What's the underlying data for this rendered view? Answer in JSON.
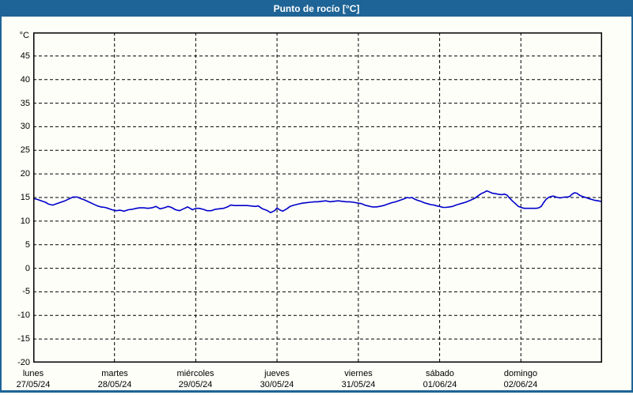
{
  "window": {
    "title": "Punto de rocío [°C]"
  },
  "colors": {
    "accent_blue": "#1e6496",
    "title_text": "#ffffff",
    "series_line": "#0000cc",
    "grid_line": "#000000",
    "content_background": "#fdfef8"
  },
  "chart_data": {
    "type": "line",
    "title": "Punto de rocío [°C]",
    "y_unit_label": "°C",
    "ylim": [
      -20,
      50
    ],
    "grid": "dashed",
    "legend": "none",
    "ygrid_values": [
      45,
      40,
      35,
      30,
      25,
      20,
      15,
      10,
      5,
      0,
      -5,
      -10,
      -15
    ],
    "ytick_labels": [
      "45",
      "40",
      "35",
      "30",
      "25",
      "20",
      "15",
      "10",
      "5",
      "0",
      "-5",
      "-10",
      "-15",
      "-20"
    ],
    "xtick_days": [
      "lunes",
      "martes",
      "miércoles",
      "jueves",
      "viernes",
      "sábado",
      "domingo"
    ],
    "xtick_dates": [
      "27/05/24",
      "28/05/24",
      "29/05/24",
      "30/05/24",
      "31/05/24",
      "01/06/24",
      "02/06/24"
    ],
    "x_days_shown": 7,
    "series": [
      {
        "name": "Punto de rocío",
        "color": "#0000cc",
        "x_unit": "days_since_2024-05-27_00:00",
        "y_unit": "°C",
        "points": [
          [
            0.0,
            14.8
          ],
          [
            0.05,
            14.6
          ],
          [
            0.1,
            14.3
          ],
          [
            0.15,
            14.0
          ],
          [
            0.19,
            13.6
          ],
          [
            0.24,
            13.4
          ],
          [
            0.29,
            13.7
          ],
          [
            0.34,
            14.0
          ],
          [
            0.39,
            14.3
          ],
          [
            0.44,
            14.7
          ],
          [
            0.49,
            15.1
          ],
          [
            0.54,
            15.1
          ],
          [
            0.58,
            14.8
          ],
          [
            0.63,
            14.5
          ],
          [
            0.68,
            14.1
          ],
          [
            0.73,
            13.7
          ],
          [
            0.78,
            13.3
          ],
          [
            0.83,
            13.0
          ],
          [
            0.88,
            12.9
          ],
          [
            0.92,
            12.7
          ],
          [
            0.97,
            12.4
          ],
          [
            1.02,
            12.2
          ],
          [
            1.07,
            12.3
          ],
          [
            1.12,
            12.1
          ],
          [
            1.17,
            12.4
          ],
          [
            1.22,
            12.5
          ],
          [
            1.27,
            12.7
          ],
          [
            1.31,
            12.8
          ],
          [
            1.36,
            12.8
          ],
          [
            1.41,
            12.7
          ],
          [
            1.46,
            12.8
          ],
          [
            1.51,
            13.1
          ],
          [
            1.56,
            12.6
          ],
          [
            1.61,
            12.8
          ],
          [
            1.66,
            13.1
          ],
          [
            1.7,
            12.9
          ],
          [
            1.75,
            12.4
          ],
          [
            1.8,
            12.2
          ],
          [
            1.85,
            12.6
          ],
          [
            1.9,
            13.0
          ],
          [
            1.93,
            12.7
          ],
          [
            1.96,
            12.4
          ],
          [
            2.0,
            12.7
          ],
          [
            2.04,
            12.7
          ],
          [
            2.09,
            12.5
          ],
          [
            2.14,
            12.2
          ],
          [
            2.19,
            12.2
          ],
          [
            2.24,
            12.5
          ],
          [
            2.29,
            12.6
          ],
          [
            2.34,
            12.7
          ],
          [
            2.39,
            13.0
          ],
          [
            2.43,
            13.4
          ],
          [
            2.48,
            13.3
          ],
          [
            2.53,
            13.3
          ],
          [
            2.58,
            13.3
          ],
          [
            2.63,
            13.3
          ],
          [
            2.68,
            13.2
          ],
          [
            2.73,
            13.1
          ],
          [
            2.77,
            13.2
          ],
          [
            2.82,
            12.6
          ],
          [
            2.87,
            12.3
          ],
          [
            2.92,
            11.8
          ],
          [
            2.97,
            12.2
          ],
          [
            3.0,
            12.8
          ],
          [
            3.03,
            12.4
          ],
          [
            3.07,
            12.1
          ],
          [
            3.12,
            12.6
          ],
          [
            3.16,
            13.1
          ],
          [
            3.21,
            13.4
          ],
          [
            3.26,
            13.6
          ],
          [
            3.31,
            13.8
          ],
          [
            3.36,
            13.9
          ],
          [
            3.41,
            14.0
          ],
          [
            3.46,
            14.1
          ],
          [
            3.5,
            14.1
          ],
          [
            3.55,
            14.2
          ],
          [
            3.6,
            14.3
          ],
          [
            3.65,
            14.1
          ],
          [
            3.7,
            14.2
          ],
          [
            3.75,
            14.3
          ],
          [
            3.8,
            14.2
          ],
          [
            3.85,
            14.1
          ],
          [
            3.89,
            14.1
          ],
          [
            3.94,
            14.0
          ],
          [
            3.97,
            13.9
          ],
          [
            4.0,
            13.8
          ],
          [
            4.04,
            13.7
          ],
          [
            4.08,
            13.4
          ],
          [
            4.12,
            13.2
          ],
          [
            4.17,
            13.0
          ],
          [
            4.22,
            13.0
          ],
          [
            4.26,
            13.1
          ],
          [
            4.31,
            13.3
          ],
          [
            4.36,
            13.6
          ],
          [
            4.41,
            13.9
          ],
          [
            4.46,
            14.1
          ],
          [
            4.51,
            14.4
          ],
          [
            4.56,
            14.7
          ],
          [
            4.6,
            15.0
          ],
          [
            4.63,
            14.9
          ],
          [
            4.66,
            15.0
          ],
          [
            4.7,
            14.6
          ],
          [
            4.73,
            14.4
          ],
          [
            4.77,
            14.2
          ],
          [
            4.81,
            13.9
          ],
          [
            4.85,
            13.7
          ],
          [
            4.89,
            13.5
          ],
          [
            4.93,
            13.4
          ],
          [
            4.97,
            13.2
          ],
          [
            5.0,
            13.1
          ],
          [
            5.04,
            12.9
          ],
          [
            5.08,
            12.9
          ],
          [
            5.12,
            13.0
          ],
          [
            5.16,
            13.1
          ],
          [
            5.2,
            13.4
          ],
          [
            5.24,
            13.6
          ],
          [
            5.28,
            13.8
          ],
          [
            5.32,
            14.0
          ],
          [
            5.35,
            14.2
          ],
          [
            5.39,
            14.5
          ],
          [
            5.43,
            14.8
          ],
          [
            5.47,
            15.3
          ],
          [
            5.51,
            15.8
          ],
          [
            5.55,
            16.1
          ],
          [
            5.58,
            16.4
          ],
          [
            5.61,
            16.2
          ],
          [
            5.65,
            15.9
          ],
          [
            5.69,
            15.8
          ],
          [
            5.72,
            15.7
          ],
          [
            5.76,
            15.6
          ],
          [
            5.8,
            15.7
          ],
          [
            5.83,
            15.5
          ],
          [
            5.86,
            14.9
          ],
          [
            5.9,
            14.2
          ],
          [
            5.94,
            13.6
          ],
          [
            5.97,
            13.1
          ],
          [
            6.0,
            12.9
          ],
          [
            6.04,
            12.7
          ],
          [
            6.07,
            12.7
          ],
          [
            6.11,
            12.7
          ],
          [
            6.15,
            12.7
          ],
          [
            6.19,
            12.7
          ],
          [
            6.22,
            12.8
          ],
          [
            6.25,
            13.1
          ],
          [
            6.28,
            13.9
          ],
          [
            6.31,
            14.6
          ],
          [
            6.34,
            15.0
          ],
          [
            6.37,
            15.2
          ],
          [
            6.4,
            15.3
          ],
          [
            6.43,
            15.1
          ],
          [
            6.46,
            15.0
          ],
          [
            6.48,
            14.9
          ],
          [
            6.51,
            15.0
          ],
          [
            6.54,
            15.1
          ],
          [
            6.57,
            15.1
          ],
          [
            6.6,
            15.2
          ],
          [
            6.63,
            15.7
          ],
          [
            6.66,
            16.0
          ],
          [
            6.69,
            15.9
          ],
          [
            6.72,
            15.5
          ],
          [
            6.76,
            15.2
          ],
          [
            6.8,
            15.0
          ],
          [
            6.83,
            14.8
          ],
          [
            6.87,
            14.6
          ],
          [
            6.91,
            14.4
          ],
          [
            6.95,
            14.3
          ],
          [
            6.98,
            14.2
          ]
        ]
      }
    ]
  }
}
